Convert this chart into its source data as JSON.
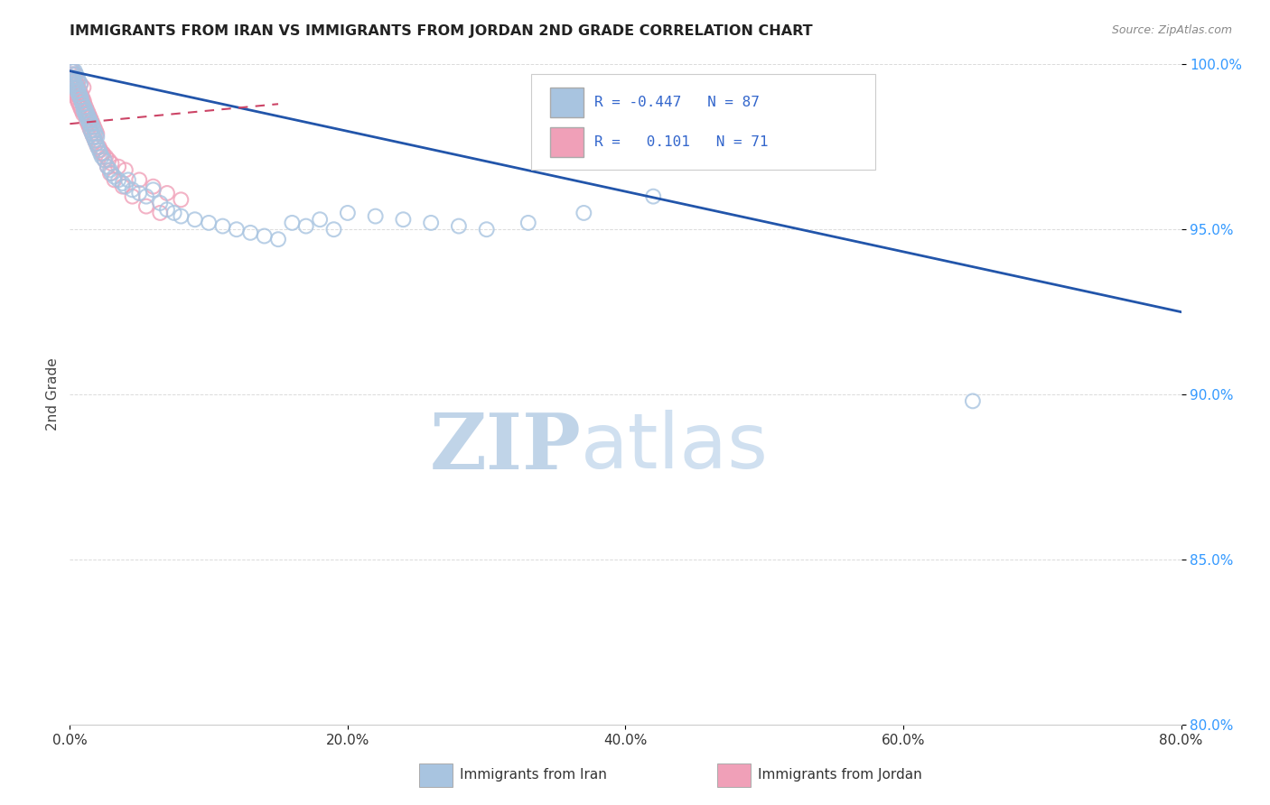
{
  "title": "IMMIGRANTS FROM IRAN VS IMMIGRANTS FROM JORDAN 2ND GRADE CORRELATION CHART",
  "source": "Source: ZipAtlas.com",
  "ylabel": "2nd Grade",
  "legend_iran": "Immigrants from Iran",
  "legend_jordan": "Immigrants from Jordan",
  "R_iran": "-0.447",
  "N_iran": 87,
  "R_jordan": "0.101",
  "N_jordan": 71,
  "xmin": 0.0,
  "xmax": 80.0,
  "ymin": 80.0,
  "ymax": 100.0,
  "yticks": [
    80.0,
    85.0,
    90.0,
    95.0,
    100.0
  ],
  "xticks": [
    0.0,
    20.0,
    40.0,
    60.0,
    80.0
  ],
  "color_iran": "#a8c4e0",
  "color_jordan": "#f0a0b8",
  "color_line_iran": "#2255aa",
  "color_line_jordan": "#cc4466",
  "iran_line_x": [
    0.0,
    80.0
  ],
  "iran_line_y": [
    99.8,
    92.5
  ],
  "jordan_line_x": [
    0.0,
    15.0
  ],
  "jordan_line_y": [
    98.2,
    98.8
  ],
  "iran_x": [
    0.1,
    0.15,
    0.2,
    0.25,
    0.3,
    0.35,
    0.4,
    0.45,
    0.5,
    0.55,
    0.6,
    0.65,
    0.7,
    0.75,
    0.8,
    0.9,
    1.0,
    1.1,
    1.2,
    1.3,
    1.4,
    1.5,
    1.6,
    1.7,
    1.8,
    1.9,
    2.0,
    2.1,
    2.2,
    2.3,
    2.5,
    2.7,
    2.9,
    3.0,
    3.2,
    3.5,
    3.8,
    4.0,
    4.2,
    4.5,
    5.0,
    5.5,
    6.0,
    6.5,
    7.0,
    7.5,
    8.0,
    9.0,
    10.0,
    11.0,
    12.0,
    13.0,
    14.0,
    15.0,
    16.0,
    17.0,
    18.0,
    19.0,
    20.0,
    22.0,
    24.0,
    26.0,
    28.0,
    30.0,
    33.0,
    37.0,
    42.0,
    65.0,
    0.12,
    0.22,
    0.32,
    0.42,
    0.52,
    0.62,
    0.72,
    0.82,
    0.92,
    1.05,
    1.15,
    1.25,
    1.35,
    1.45,
    1.55,
    1.65,
    1.75,
    1.85,
    1.95
  ],
  "iran_y": [
    99.8,
    99.9,
    99.7,
    99.6,
    99.5,
    99.8,
    99.4,
    99.7,
    99.3,
    99.6,
    99.2,
    99.5,
    99.1,
    99.4,
    99.0,
    98.8,
    98.6,
    98.5,
    98.4,
    98.3,
    98.2,
    98.0,
    97.9,
    97.8,
    97.7,
    97.6,
    97.5,
    97.4,
    97.3,
    97.2,
    97.1,
    96.9,
    96.8,
    96.7,
    96.6,
    96.5,
    96.4,
    96.3,
    96.5,
    96.2,
    96.1,
    96.0,
    96.2,
    95.8,
    95.6,
    95.5,
    95.4,
    95.3,
    95.2,
    95.1,
    95.0,
    94.9,
    94.8,
    94.7,
    95.2,
    95.1,
    95.3,
    95.0,
    95.5,
    95.4,
    95.3,
    95.2,
    95.1,
    95.0,
    95.2,
    95.5,
    96.0,
    89.8,
    99.6,
    99.5,
    99.4,
    99.3,
    99.2,
    99.1,
    99.0,
    98.9,
    98.8,
    98.7,
    98.6,
    98.5,
    98.4,
    98.3,
    98.2,
    98.1,
    98.0,
    97.9,
    97.8
  ],
  "jordan_x": [
    0.05,
    0.1,
    0.15,
    0.2,
    0.25,
    0.3,
    0.35,
    0.4,
    0.45,
    0.5,
    0.55,
    0.6,
    0.65,
    0.7,
    0.75,
    0.8,
    0.85,
    0.9,
    0.95,
    1.0,
    1.1,
    1.2,
    1.3,
    1.4,
    1.5,
    1.6,
    1.7,
    1.8,
    1.9,
    2.0,
    2.2,
    2.4,
    2.6,
    2.8,
    3.0,
    3.5,
    4.0,
    5.0,
    6.0,
    7.0,
    8.0,
    0.08,
    0.18,
    0.28,
    0.38,
    0.48,
    0.58,
    0.68,
    0.78,
    0.88,
    0.98,
    1.05,
    1.15,
    1.25,
    1.35,
    1.45,
    1.55,
    1.65,
    1.75,
    1.85,
    1.95,
    2.1,
    2.3,
    2.5,
    2.7,
    2.9,
    3.2,
    3.8,
    4.5,
    5.5,
    6.5
  ],
  "jordan_y": [
    99.5,
    99.7,
    99.3,
    99.8,
    99.2,
    99.6,
    99.1,
    99.5,
    99.0,
    99.4,
    98.9,
    99.3,
    98.8,
    99.2,
    98.7,
    99.1,
    98.6,
    99.0,
    98.5,
    98.9,
    98.5,
    98.3,
    98.2,
    98.1,
    98.0,
    97.9,
    97.8,
    97.7,
    97.6,
    97.5,
    97.4,
    97.3,
    97.2,
    97.1,
    97.0,
    96.9,
    96.8,
    96.5,
    96.3,
    96.1,
    95.9,
    99.4,
    99.6,
    99.2,
    99.7,
    99.1,
    99.5,
    99.0,
    99.4,
    98.9,
    99.3,
    98.8,
    98.7,
    98.6,
    98.5,
    98.4,
    98.3,
    98.2,
    98.1,
    98.0,
    97.9,
    97.5,
    97.3,
    97.1,
    96.9,
    96.7,
    96.5,
    96.3,
    96.0,
    95.7,
    95.5
  ],
  "background_color": "#ffffff",
  "grid_color": "#cccccc",
  "watermark_zip": "ZIP",
  "watermark_atlas": "atlas",
  "watermark_color_dark": "#c0d4e8",
  "watermark_color_light": "#d0e0f0"
}
